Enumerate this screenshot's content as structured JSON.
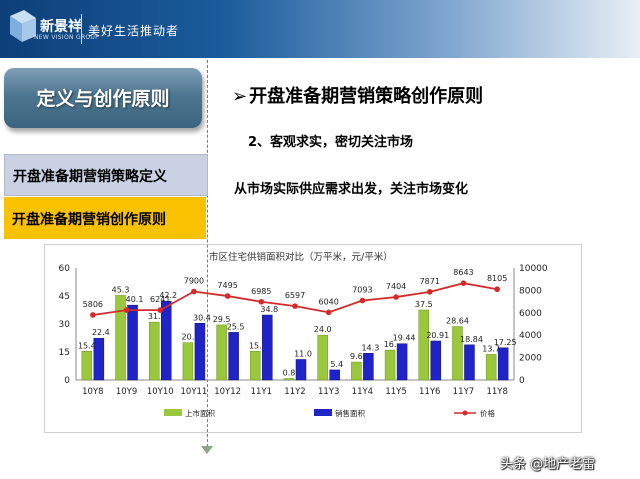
{
  "header": {
    "logo_text": "新景祥",
    "logo_sub": "NEW VISION GROUP",
    "slogan": "美好生活推动者"
  },
  "sidebar": {
    "title": "定义与创作原则",
    "items": [
      {
        "label": "开盘准备期营销策略定义",
        "active": false
      },
      {
        "label": "开盘准备期营销创作原则",
        "active": true
      }
    ]
  },
  "content": {
    "heading_arrow": "➢",
    "heading": "开盘准备期营销策略创作原则",
    "point": "2、客观求实，密切关注市场",
    "description": "从市场实际供应需求出发，关注市场变化"
  },
  "colors": {
    "supply": "#9bc73c",
    "sales": "#1f23c8",
    "price": "#d62a2a",
    "active_nav": "#f9c200"
  },
  "chart_data": {
    "type": "bar",
    "title": "市区住宅供销面积对比（万平米，元/平米）",
    "categories": [
      "10Y8",
      "10Y9",
      "10Y10",
      "10Y11",
      "10Y12",
      "11Y1",
      "11Y2",
      "11Y3",
      "11Y4",
      "11Y5",
      "11Y6",
      "11Y7",
      "11Y8"
    ],
    "series": [
      {
        "name": "上市面积",
        "values": [
          15.4,
          45.3,
          31.0,
          20.0,
          29.5,
          15.4,
          0.8,
          24.0,
          9.6,
          16.0,
          37.5,
          28.64,
          13.7
        ]
      },
      {
        "name": "销售面积",
        "values": [
          22.4,
          40.1,
          42.2,
          30.4,
          25.5,
          34.8,
          11.0,
          5.4,
          14.3,
          19.44,
          20.91,
          18.84,
          17.25
        ]
      },
      {
        "name": "价格",
        "values": [
          5806,
          6241,
          6241,
          7900,
          7495,
          6985,
          6597,
          6040,
          7093,
          7404,
          7871,
          8643,
          8105
        ]
      }
    ],
    "left_labels": [
      "15.4",
      "45.3",
      "31.",
      "20.",
      "29.5",
      "15.",
      "0.8",
      "24.0",
      "9.6",
      "16.",
      "37.5",
      "28.64",
      "13.7"
    ],
    "right_labels": [
      "22.4",
      "40.1",
      "42.2",
      "30.4",
      "25.5",
      "34.8",
      "11.0",
      "5.4",
      "14.3",
      "19.44",
      "20.91",
      "18.84",
      "17.25"
    ],
    "price_labels": [
      "5806",
      "",
      "6241",
      "7900",
      "7495",
      "6985",
      "6597",
      "6040",
      "7093",
      "7404",
      "7871",
      "8643",
      "8105"
    ],
    "ylim_left": [
      0,
      60
    ],
    "yticks_left": [
      "0",
      "15",
      "30",
      "45",
      "60"
    ],
    "ylim_right": [
      0,
      10000
    ],
    "yticks_right": [
      "0",
      "2000",
      "4000",
      "6000",
      "8000",
      "10000"
    ],
    "legend_position": "bottom"
  },
  "watermark": "头条 @地产老雷"
}
